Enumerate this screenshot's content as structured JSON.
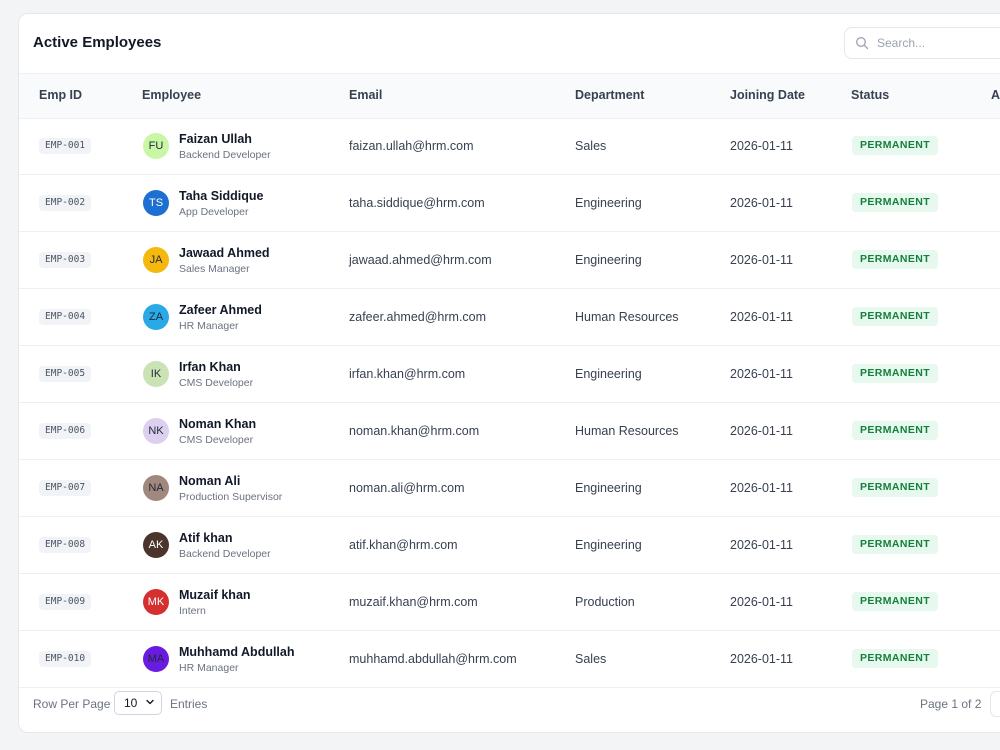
{
  "card": {
    "title": "Active Employees",
    "search_placeholder": "Search..."
  },
  "table": {
    "columns": [
      "Emp ID",
      "Employee",
      "Email",
      "Department",
      "Joining Date",
      "Status",
      "Ac"
    ],
    "rows": [
      {
        "id": "EMP-001",
        "initials": "FU",
        "name": "Faizan Ullah",
        "role": "Backend Developer",
        "email": "faizan.ullah@hrm.com",
        "department": "Sales",
        "joining_date": "2026-01-11",
        "status": "PERMANENT",
        "avatar_bg": "#c8f7a5",
        "avatar_fg": "#1f2937"
      },
      {
        "id": "EMP-002",
        "initials": "TS",
        "name": "Taha Siddique",
        "role": "App Developer",
        "email": "taha.siddique@hrm.com",
        "department": "Engineering",
        "joining_date": "2026-01-11",
        "status": "PERMANENT",
        "avatar_bg": "#1d6fd1",
        "avatar_fg": "#ffffff"
      },
      {
        "id": "EMP-003",
        "initials": "JA",
        "name": "Jawaad Ahmed",
        "role": "Sales Manager",
        "email": "jawaad.ahmed@hrm.com",
        "department": "Engineering",
        "joining_date": "2026-01-11",
        "status": "PERMANENT",
        "avatar_bg": "#f5b80c",
        "avatar_fg": "#1f2937"
      },
      {
        "id": "EMP-004",
        "initials": "ZA",
        "name": "Zafeer Ahmed",
        "role": "HR Manager",
        "email": "zafeer.ahmed@hrm.com",
        "department": "Human Resources",
        "joining_date": "2026-01-11",
        "status": "PERMANENT",
        "avatar_bg": "#29a9e6",
        "avatar_fg": "#1f2937"
      },
      {
        "id": "EMP-005",
        "initials": "IK",
        "name": "Irfan Khan",
        "role": "CMS Developer",
        "email": "irfan.khan@hrm.com",
        "department": "Engineering",
        "joining_date": "2026-01-11",
        "status": "PERMANENT",
        "avatar_bg": "#c9e3b4",
        "avatar_fg": "#1f2937"
      },
      {
        "id": "EMP-006",
        "initials": "NK",
        "name": "Noman Khan",
        "role": "CMS Developer",
        "email": "noman.khan@hrm.com",
        "department": "Human Resources",
        "joining_date": "2026-01-11",
        "status": "PERMANENT",
        "avatar_bg": "#dcd0f0",
        "avatar_fg": "#1f2937"
      },
      {
        "id": "EMP-007",
        "initials": "NA",
        "name": "Noman Ali",
        "role": "Production Supervisor",
        "email": "noman.ali@hrm.com",
        "department": "Engineering",
        "joining_date": "2026-01-11",
        "status": "PERMANENT",
        "avatar_bg": "#a1887f",
        "avatar_fg": "#1f2937"
      },
      {
        "id": "EMP-008",
        "initials": "AK",
        "name": "Atif khan",
        "role": "Backend Developer",
        "email": "atif.khan@hrm.com",
        "department": "Engineering",
        "joining_date": "2026-01-11",
        "status": "PERMANENT",
        "avatar_bg": "#4a342c",
        "avatar_fg": "#ffffff"
      },
      {
        "id": "EMP-009",
        "initials": "MK",
        "name": "Muzaif khan",
        "role": "Intern",
        "email": "muzaif.khan@hrm.com",
        "department": "Production",
        "joining_date": "2026-01-11",
        "status": "PERMANENT",
        "avatar_bg": "#d3302f",
        "avatar_fg": "#ffffff"
      },
      {
        "id": "EMP-010",
        "initials": "MA",
        "name": "Muhhamd Abdullah",
        "role": "HR Manager",
        "email": "muhhamd.abdullah@hrm.com",
        "department": "Sales",
        "joining_date": "2026-01-11",
        "status": "PERMANENT",
        "avatar_bg": "#6a1be0",
        "avatar_fg": "#1f2937"
      }
    ]
  },
  "footer": {
    "rows_per_page_label": "Row Per Page",
    "rows_per_page_value": "10",
    "entries_label": "Entries",
    "page_info": "Page 1 of 2"
  }
}
